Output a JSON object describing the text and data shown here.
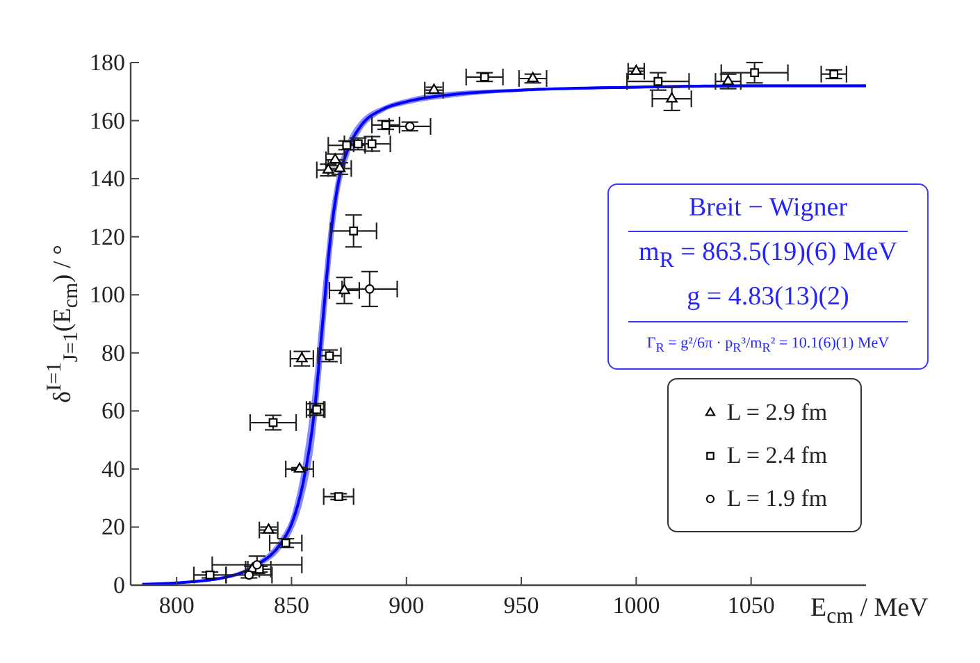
{
  "chart_data": {
    "type": "scatter",
    "xlabel": "E$_{cm}$ / MeV",
    "ylabel": "δ$^{I=1}$$_{J=1}$(E$_{cm}$) / °",
    "xlim": [
      780,
      1100
    ],
    "xticks": [
      800,
      850,
      900,
      950,
      1000,
      1050
    ],
    "ylim": [
      0,
      180
    ],
    "yticks": [
      0,
      20,
      40,
      60,
      80,
      100,
      120,
      140,
      160,
      180
    ],
    "legend": "bottom right",
    "annotations": [
      "Breit − Wigner",
      "m$_{R}$ = 863.5(19)(6) MeV",
      "g = 4.83(13)(2)",
      "Γ$_{R}$ = g²/6π · p$_{R}$³/m$_{R}$² = 10.1(6)(1) MeV"
    ],
    "series": [
      {
        "type": "line",
        "color": "#0000ff",
        "x": [
          785,
          800,
          820,
          835,
          845,
          850,
          855,
          860,
          863.5,
          867,
          870,
          875,
          880,
          890,
          900,
          920,
          950,
          1000,
          1050,
          1100
        ],
        "values": [
          0.3,
          0.8,
          2.5,
          7,
          14,
          21,
          35,
          60,
          90,
          120,
          137,
          151,
          158,
          164,
          166.5,
          169,
          170.5,
          171.5,
          172,
          172
        ],
        "lower": [
          0.2,
          0.6,
          2,
          6,
          12,
          18,
          29,
          50,
          78,
          110,
          131,
          148,
          156,
          163,
          165.5,
          168,
          170,
          171,
          171.5,
          171.5
        ],
        "upper": [
          0.4,
          1,
          3,
          8,
          16,
          24,
          42,
          72,
          102,
          128,
          142,
          154,
          160,
          165,
          167.5,
          170,
          171,
          172,
          172.5,
          172.5
        ]
      },
      {
        "name": "L = 2.9 fm",
        "marker": "triangle",
        "color": "#000000",
        "x": [
          833,
          840,
          853.5,
          860.5,
          854.5,
          873,
          866,
          869,
          871,
          912,
          955,
          1000,
          1015.5,
          1040
        ],
        "values": [
          5.5,
          19,
          40,
          60.5,
          78,
          101.5,
          143,
          146.5,
          143.5,
          170.5,
          174.5,
          177,
          167.5,
          173.5
        ],
        "errors": [
          1,
          1,
          0.5,
          2,
          2.5,
          4.5,
          2,
          2,
          2,
          1,
          1.5,
          1,
          4,
          2.5
        ],
        "xerrors": [
          3,
          4,
          6,
          4,
          5,
          6.5,
          5,
          4,
          5,
          4,
          6,
          3.5,
          8.5,
          5.5
        ]
      },
      {
        "name": "L = 2.4 fm",
        "marker": "square",
        "color": "#000000",
        "x": [
          814.5,
          836,
          847.5,
          842,
          870.5,
          861,
          866.5,
          877,
          874,
          879,
          885,
          891,
          934,
          1009.5,
          1051.5,
          1086
        ],
        "values": [
          3.5,
          5.5,
          14.5,
          56,
          30.5,
          60.5,
          79,
          122,
          151.5,
          152,
          152,
          158.5,
          175,
          173.5,
          176.5,
          176
        ],
        "errors": [
          1,
          1,
          1.5,
          2.5,
          1,
          2,
          2,
          5.5,
          1.5,
          2,
          2.5,
          1.5,
          1.5,
          3,
          3.5,
          1.5
        ],
        "xerrors": [
          7,
          5,
          7,
          10,
          6.5,
          3,
          5,
          10,
          8,
          6,
          8,
          6,
          8,
          13.5,
          14.5,
          5.5
        ]
      },
      {
        "name": "L = 1.9 fm",
        "marker": "circle",
        "color": "#000000",
        "x": [
          831.5,
          835,
          884,
          901.5
        ],
        "values": [
          3.5,
          7,
          102,
          158
        ],
        "errors": [
          1,
          3,
          6,
          1.5
        ],
        "xerrors": [
          10,
          19.5,
          12,
          9
        ]
      }
    ]
  }
}
